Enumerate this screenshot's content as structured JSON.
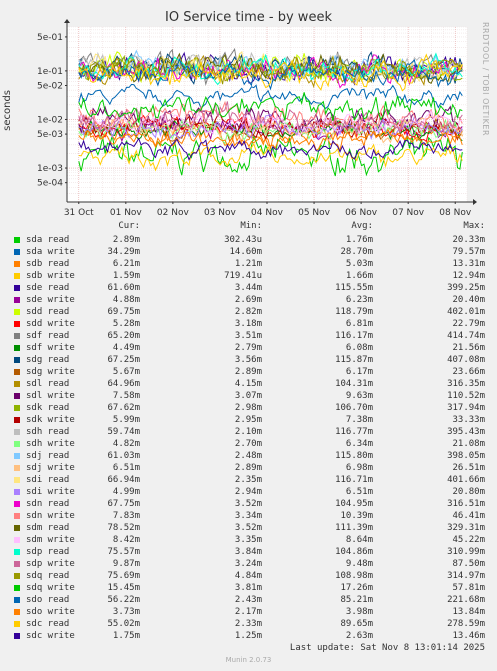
{
  "title": "IO Service time - by week",
  "side_label": "RRDTOOL / TOBI OETIKER",
  "footer": {
    "update": "Last update: Sat Nov  8 13:01:14 2025",
    "version": "Munin 2.0.73"
  },
  "legend_headers": {
    "cur": "Cur:",
    "min": "Min:",
    "avg": "Avg:",
    "max": "Max:"
  },
  "chart_data": {
    "type": "line",
    "ylabel": "seconds",
    "yscale": "log",
    "ylim": [
      0.0002,
      0.8
    ],
    "y_ticks": [
      "5e-01",
      "1e-01",
      "5e-02",
      "1e-02",
      "5e-03",
      "1e-03",
      "5e-04"
    ],
    "y_tick_values": [
      0.5,
      0.1,
      0.05,
      0.01,
      0.005,
      0.001,
      0.0005
    ],
    "x_ticks": [
      "31 Oct",
      "01 Nov",
      "02 Nov",
      "03 Nov",
      "04 Nov",
      "05 Nov",
      "06 Nov",
      "07 Nov",
      "08 Nov"
    ],
    "x_tick_values": [
      0.25,
      1.25,
      2.25,
      3.25,
      4.25,
      5.25,
      6.25,
      7.25,
      8.25
    ],
    "xlim": [
      0,
      8.5
    ],
    "grid": true,
    "series": [
      {
        "name": "sda read",
        "color": "#00cc00",
        "cur": "2.89m",
        "min": "302.43u",
        "avg": "1.76m",
        "max": "20.33m"
      },
      {
        "name": "sda write",
        "color": "#0066b3",
        "cur": "34.29m",
        "min": "14.60m",
        "avg": "28.70m",
        "max": "79.57m"
      },
      {
        "name": "sdb read",
        "color": "#ff8000",
        "cur": "6.21m",
        "min": "1.21m",
        "avg": "5.03m",
        "max": "13.31m"
      },
      {
        "name": "sdb write",
        "color": "#ffcc00",
        "cur": "1.59m",
        "min": "719.41u",
        "avg": "1.66m",
        "max": "12.94m"
      },
      {
        "name": "sde read",
        "color": "#330099",
        "cur": "61.60m",
        "min": "3.44m",
        "avg": "115.55m",
        "max": "399.25m"
      },
      {
        "name": "sde write",
        "color": "#990099",
        "cur": "4.88m",
        "min": "2.69m",
        "avg": "6.23m",
        "max": "20.40m"
      },
      {
        "name": "sdd read",
        "color": "#ccff00",
        "cur": "69.75m",
        "min": "2.82m",
        "avg": "118.79m",
        "max": "402.01m"
      },
      {
        "name": "sdd write",
        "color": "#ff0000",
        "cur": "5.28m",
        "min": "3.18m",
        "avg": "6.81m",
        "max": "22.79m"
      },
      {
        "name": "sdf read",
        "color": "#808080",
        "cur": "65.20m",
        "min": "3.51m",
        "avg": "116.17m",
        "max": "414.74m"
      },
      {
        "name": "sdf write",
        "color": "#008f00",
        "cur": "4.49m",
        "min": "2.79m",
        "avg": "6.08m",
        "max": "21.56m"
      },
      {
        "name": "sdg read",
        "color": "#00487d",
        "cur": "67.25m",
        "min": "3.56m",
        "avg": "115.87m",
        "max": "407.08m"
      },
      {
        "name": "sdg write",
        "color": "#b35a00",
        "cur": "5.67m",
        "min": "2.89m",
        "avg": "6.17m",
        "max": "23.66m"
      },
      {
        "name": "sdl read",
        "color": "#b38f00",
        "cur": "64.96m",
        "min": "4.15m",
        "avg": "104.31m",
        "max": "316.35m"
      },
      {
        "name": "sdl write",
        "color": "#6b006b",
        "cur": "7.58m",
        "min": "3.07m",
        "avg": "9.63m",
        "max": "110.52m"
      },
      {
        "name": "sdk read",
        "color": "#8fb300",
        "cur": "67.62m",
        "min": "2.98m",
        "avg": "106.70m",
        "max": "317.94m"
      },
      {
        "name": "sdk write",
        "color": "#b30000",
        "cur": "5.99m",
        "min": "2.95m",
        "avg": "7.38m",
        "max": "33.33m"
      },
      {
        "name": "sdh read",
        "color": "#bebebe",
        "cur": "59.74m",
        "min": "2.10m",
        "avg": "116.77m",
        "max": "395.43m"
      },
      {
        "name": "sdh write",
        "color": "#80ff80",
        "cur": "4.82m",
        "min": "2.70m",
        "avg": "6.34m",
        "max": "21.08m"
      },
      {
        "name": "sdj read",
        "color": "#80c9ff",
        "cur": "61.03m",
        "min": "2.48m",
        "avg": "115.80m",
        "max": "398.05m"
      },
      {
        "name": "sdj write",
        "color": "#ffc080",
        "cur": "6.51m",
        "min": "2.89m",
        "avg": "6.98m",
        "max": "26.51m"
      },
      {
        "name": "sdi read",
        "color": "#ffe680",
        "cur": "66.94m",
        "min": "2.35m",
        "avg": "116.71m",
        "max": "401.66m"
      },
      {
        "name": "sdi write",
        "color": "#aa80ff",
        "cur": "4.99m",
        "min": "2.94m",
        "avg": "6.51m",
        "max": "20.80m"
      },
      {
        "name": "sdn read",
        "color": "#ee00cc",
        "cur": "67.75m",
        "min": "3.52m",
        "avg": "104.95m",
        "max": "316.51m"
      },
      {
        "name": "sdn write",
        "color": "#ff8080",
        "cur": "7.83m",
        "min": "3.34m",
        "avg": "10.39m",
        "max": "46.41m"
      },
      {
        "name": "sdm read",
        "color": "#666600",
        "cur": "78.52m",
        "min": "3.52m",
        "avg": "111.39m",
        "max": "329.31m"
      },
      {
        "name": "sdm write",
        "color": "#ffbfff",
        "cur": "8.42m",
        "min": "3.35m",
        "avg": "8.64m",
        "max": "45.22m"
      },
      {
        "name": "sdp read",
        "color": "#00ffcc",
        "cur": "75.57m",
        "min": "3.84m",
        "avg": "104.86m",
        "max": "310.99m"
      },
      {
        "name": "sdp write",
        "color": "#cc6699",
        "cur": "9.87m",
        "min": "3.24m",
        "avg": "9.48m",
        "max": "87.50m"
      },
      {
        "name": "sdq read",
        "color": "#999900",
        "cur": "75.69m",
        "min": "4.84m",
        "avg": "108.98m",
        "max": "314.97m"
      },
      {
        "name": "sdq write",
        "color": "#00cc00",
        "cur": "15.45m",
        "min": "3.81m",
        "avg": "17.26m",
        "max": "57.81m"
      },
      {
        "name": "sdo read",
        "color": "#0066b3",
        "cur": "56.22m",
        "min": "2.43m",
        "avg": "85.21m",
        "max": "221.68m"
      },
      {
        "name": "sdo write",
        "color": "#ff8000",
        "cur": "3.73m",
        "min": "2.17m",
        "avg": "3.98m",
        "max": "13.84m"
      },
      {
        "name": "sdc read",
        "color": "#ffcc00",
        "cur": "55.02m",
        "min": "2.33m",
        "avg": "89.65m",
        "max": "278.59m"
      },
      {
        "name": "sdc write",
        "color": "#330099",
        "cur": "1.75m",
        "min": "1.25m",
        "avg": "2.63m",
        "max": "13.46m"
      }
    ]
  }
}
